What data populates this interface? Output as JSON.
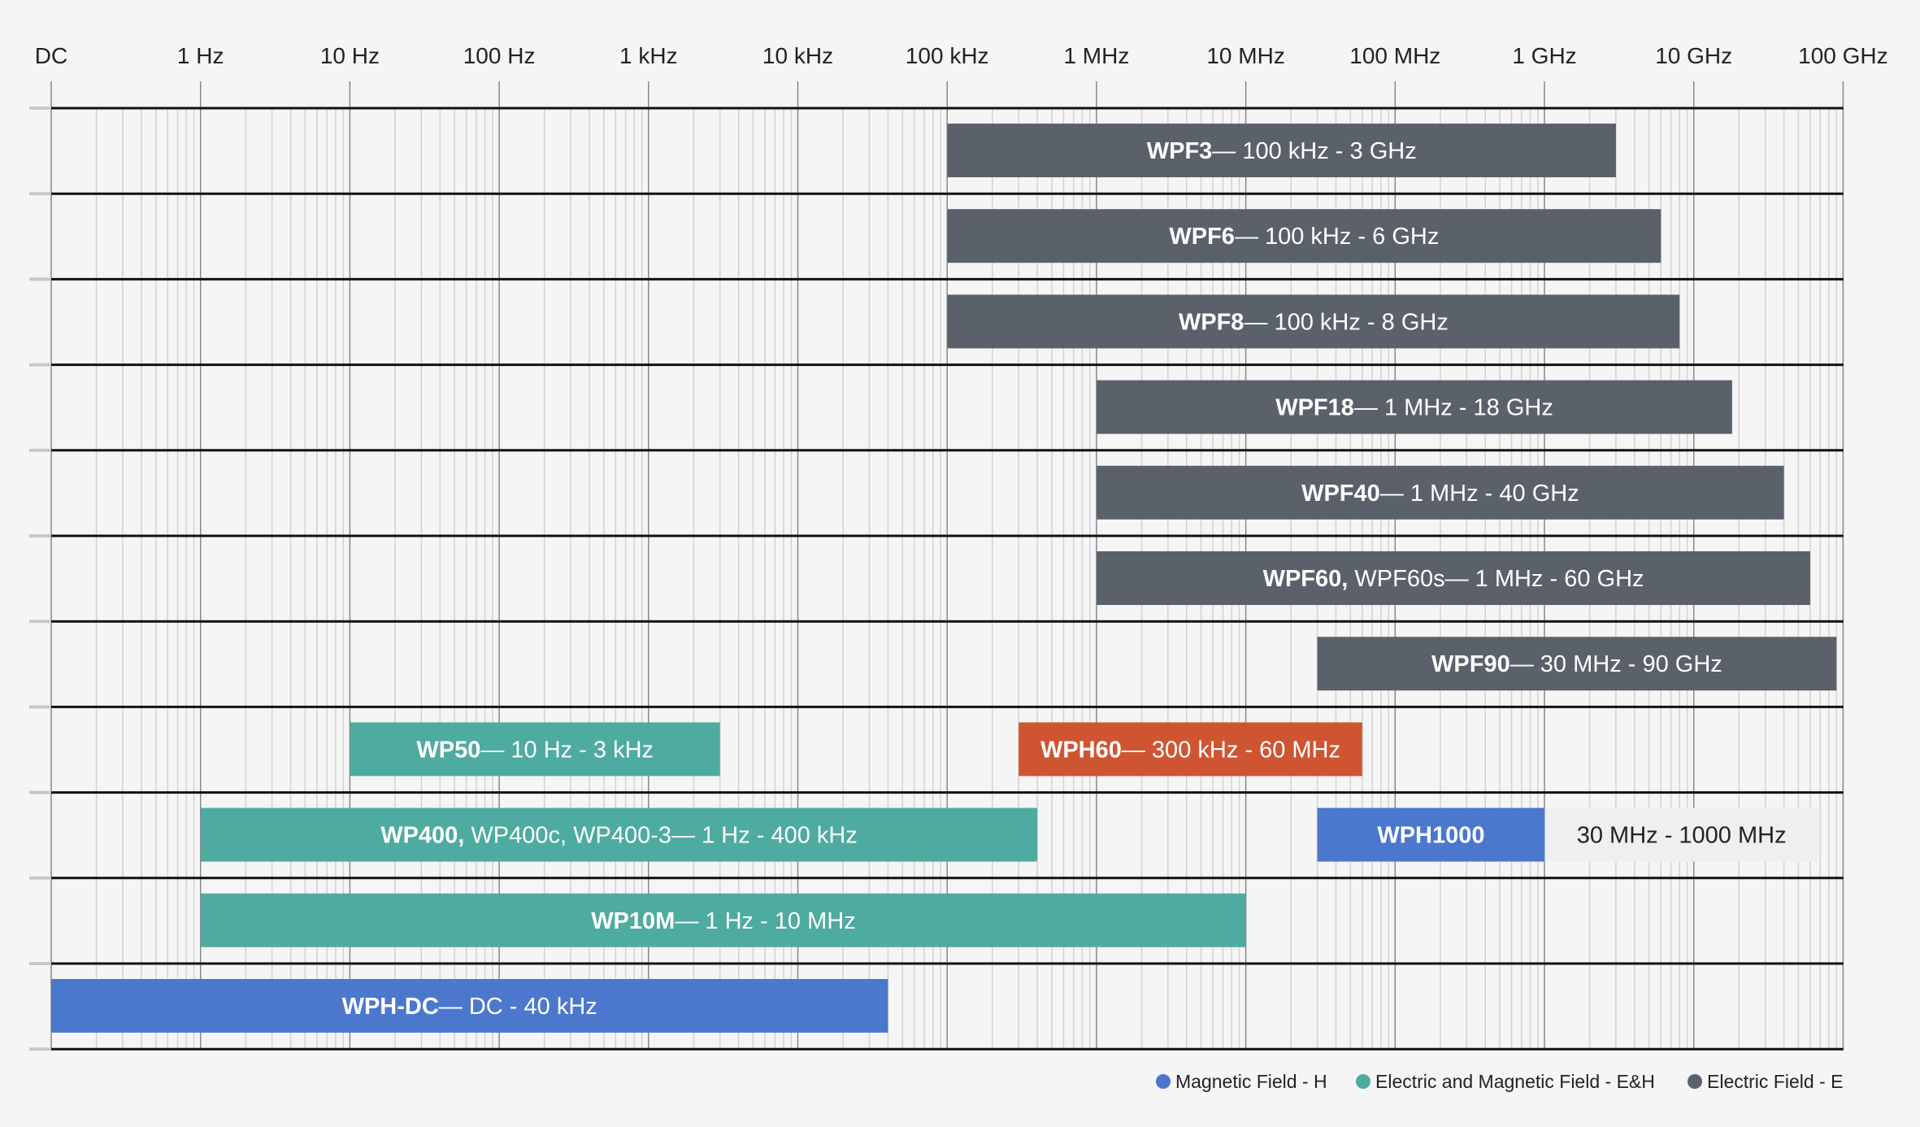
{
  "chart_data": {
    "type": "bar",
    "orientation": "horizontal-range",
    "x_scale": "log",
    "x_ticks": [
      "DC",
      "1 Hz",
      "10 Hz",
      "100 Hz",
      "1 kHz",
      "10 kHz",
      "100 kHz",
      "1 MHz",
      "10 MHz",
      "100 MHz",
      "1 GHz",
      "10 GHz",
      "100 GHz"
    ],
    "x_range": [
      "DC",
      "100 GHz"
    ],
    "grid": true,
    "legend_position": "bottom-right",
    "colors": {
      "magnetic": "#4b78cd",
      "em": "#4eab9f",
      "electric": "#5a616b",
      "accent": "#cf5532",
      "label_box": "#efeff1",
      "background": "#f5f5f5"
    },
    "legend": [
      {
        "label": "Magnetic Field - H",
        "color": "#4b78cd"
      },
      {
        "label": "Electric and Magnetic Field - E&H",
        "color": "#4eab9f"
      },
      {
        "label": "Electric Field - E",
        "color": "#5a616b"
      }
    ],
    "bars": [
      {
        "row": 0,
        "name": "WPF3",
        "name_extra": "",
        "range": "— 100 kHz - 3 GHz",
        "start_hz": 100000.0,
        "end_hz": 3000000000.0,
        "color": "#5a616b"
      },
      {
        "row": 1,
        "name": "WPF6",
        "name_extra": "",
        "range": "— 100 kHz - 6 GHz",
        "start_hz": 100000.0,
        "end_hz": 6000000000.0,
        "color": "#5a616b"
      },
      {
        "row": 2,
        "name": "WPF8",
        "name_extra": "",
        "range": "— 100 kHz - 8 GHz",
        "start_hz": 100000.0,
        "end_hz": 8000000000.0,
        "color": "#5a616b"
      },
      {
        "row": 3,
        "name": "WPF18",
        "name_extra": "",
        "range": "— 1 MHz - 18 GHz",
        "start_hz": 1000000.0,
        "end_hz": 18000000000.0,
        "color": "#5a616b"
      },
      {
        "row": 4,
        "name": "WPF40",
        "name_extra": "",
        "range": "— 1 MHz - 40 GHz",
        "start_hz": 1000000.0,
        "end_hz": 40000000000.0,
        "color": "#5a616b"
      },
      {
        "row": 5,
        "name": "WPF60,",
        "name_extra": " WPF60s",
        "range": "— 1 MHz - 60 GHz",
        "start_hz": 1000000.0,
        "end_hz": 60000000000.0,
        "color": "#5a616b"
      },
      {
        "row": 6,
        "name": "WPF90",
        "name_extra": "",
        "range": "— 30 MHz - 90 GHz",
        "start_hz": 30000000.0,
        "end_hz": 90000000000.0,
        "color": "#5a616b"
      },
      {
        "row": 7,
        "name": "WP50",
        "name_extra": "",
        "range": "— 10 Hz - 3 kHz",
        "start_hz": 10,
        "end_hz": 3000,
        "color": "#4eab9f"
      },
      {
        "row": 7,
        "name": "WPH60",
        "name_extra": "",
        "range": "— 300 kHz - 60 MHz",
        "start_hz": 300000.0,
        "end_hz": 60000000.0,
        "color": "#cf5532"
      },
      {
        "row": 8,
        "name": "WP400,",
        "name_extra": " WP400c, WP400-3",
        "range": "— 1 Hz - 400 kHz",
        "start_hz": 1,
        "end_hz": 400000.0,
        "color": "#4eab9f"
      },
      {
        "row": 8,
        "name": "WPH1000",
        "name_extra": "",
        "range": "30 MHz - 1000 MHz",
        "range_outside": true,
        "start_hz": 30000000.0,
        "end_hz": 1000000000.0,
        "color": "#4b78cd"
      },
      {
        "row": 9,
        "name": "WP10M",
        "name_extra": "",
        "range": "— 1 Hz - 10 MHz",
        "start_hz": 1,
        "end_hz": 10000000.0,
        "color": "#4eab9f"
      },
      {
        "row": 10,
        "name": "WPH-DC",
        "name_extra": "",
        "range": "— DC - 40 kHz",
        "start_hz": "DC",
        "end_hz": 40000.0,
        "color": "#4b78cd"
      }
    ]
  }
}
